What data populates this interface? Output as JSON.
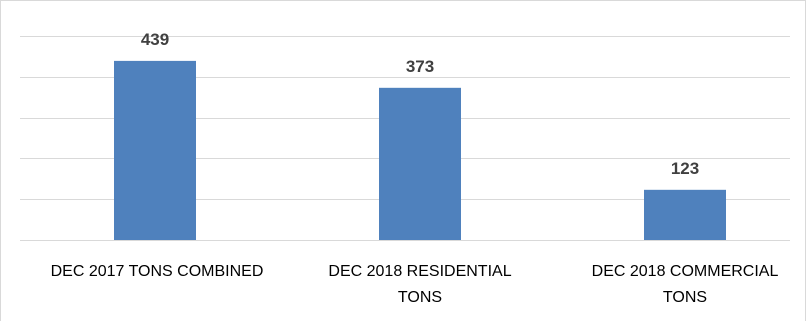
{
  "chart_data": {
    "type": "bar",
    "categories": [
      "DEC 2017 TONS COMBINED",
      "DEC 2018 RESIDENTIAL TONS",
      "DEC 2018 COMMERCIAL TONS"
    ],
    "category_lines": [
      [
        "DEC 2017 TONS COMBINED"
      ],
      [
        "DEC 2018 RESIDENTIAL",
        "TONS"
      ],
      [
        "DEC 2018 COMMERCIAL",
        "TONS"
      ]
    ],
    "values": [
      439,
      373,
      123
    ],
    "data_labels": [
      "439",
      "373",
      "123"
    ],
    "ylim": [
      0,
      500
    ],
    "grid": true,
    "legend": "none",
    "bar_color": "#4f81bd",
    "grid_color": "#d9d9d9",
    "label_color": "#404040"
  }
}
